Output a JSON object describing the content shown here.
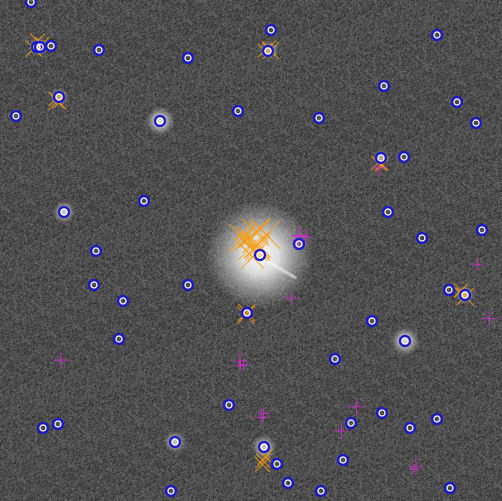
{
  "image": {
    "kind": "astronomical-field-with-source-detection-overlay",
    "background_color": "#4e4e4e"
  },
  "legend_colors": {
    "catalog_source": "#1a1acc",
    "matched_source": "#ffffff",
    "saturated_mask": "#f39c12",
    "artifact_mask": "#d22fd2"
  },
  "bright_stars": [
    {
      "id": "star-a",
      "brightness": 1.0
    },
    {
      "id": "star-b",
      "brightness": 0.85
    },
    {
      "id": "star-c",
      "brightness": 0.8
    },
    {
      "id": "star-d",
      "brightness": 0.75
    },
    {
      "id": "star-e",
      "brightness": 0.7
    },
    {
      "id": "star-f",
      "brightness": 0.7
    },
    {
      "id": "star-g",
      "brightness": 0.65
    },
    {
      "id": "star-h",
      "brightness": 0.6
    },
    {
      "id": "star-i",
      "brightness": 0.6
    },
    {
      "id": "star-j",
      "brightness": 0.6
    },
    {
      "id": "star-k",
      "brightness": 0.55
    }
  ],
  "source_count": 63,
  "mask_cluster_count": 17
}
